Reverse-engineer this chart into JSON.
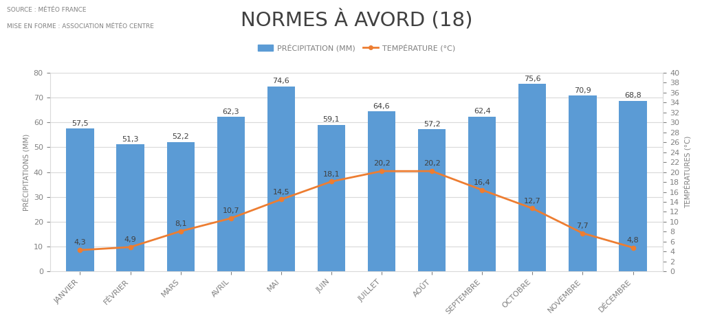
{
  "title": "NORMES À AVORD (18)",
  "source_line1": "SOURCE : MÉTÉO FRANCE",
  "source_line2": "MISE EN FORME : ASSOCIATION MÉTÉO CENTRE",
  "months": [
    "JANVIER",
    "FÉVRIER",
    "MARS",
    "AVRIL",
    "MAI",
    "JUIN",
    "JUILLET",
    "AOÛT",
    "SEPTEMBRE",
    "OCTOBRE",
    "NOVEMBRE",
    "DÉCEMBRE"
  ],
  "precipitation": [
    57.5,
    51.3,
    52.2,
    62.3,
    74.6,
    59.1,
    64.6,
    57.2,
    62.4,
    75.6,
    70.9,
    68.8
  ],
  "temperature": [
    4.3,
    4.9,
    8.1,
    10.7,
    14.5,
    18.1,
    20.2,
    20.2,
    16.4,
    12.7,
    7.7,
    4.8
  ],
  "bar_color": "#5B9BD5",
  "line_color": "#ED7D31",
  "ylabel_left": "PRÉCIPITATIONS (MM)",
  "ylabel_right": "TEMPÉRATURES (°C)",
  "legend_precip": "PRÉCIPITATION (MM)",
  "legend_temp": "TEMPÉRATURE (°C)",
  "ylim_left": [
    0,
    80
  ],
  "ylim_right": [
    0,
    40
  ],
  "yticks_left": [
    0,
    10,
    20,
    30,
    40,
    50,
    60,
    70,
    80
  ],
  "yticks_right": [
    0,
    2,
    4,
    6,
    8,
    10,
    12,
    14,
    16,
    18,
    20,
    22,
    24,
    26,
    28,
    30,
    32,
    34,
    36,
    38,
    40
  ],
  "background_color": "#FFFFFF",
  "grid_color": "#D9D9D9",
  "title_fontsize": 21,
  "source_fontsize": 6.5,
  "label_fontsize": 7.5,
  "tick_fontsize": 8,
  "annotation_fontsize": 8,
  "legend_fontsize": 8,
  "text_color": "#404040",
  "axis_color": "#808080"
}
